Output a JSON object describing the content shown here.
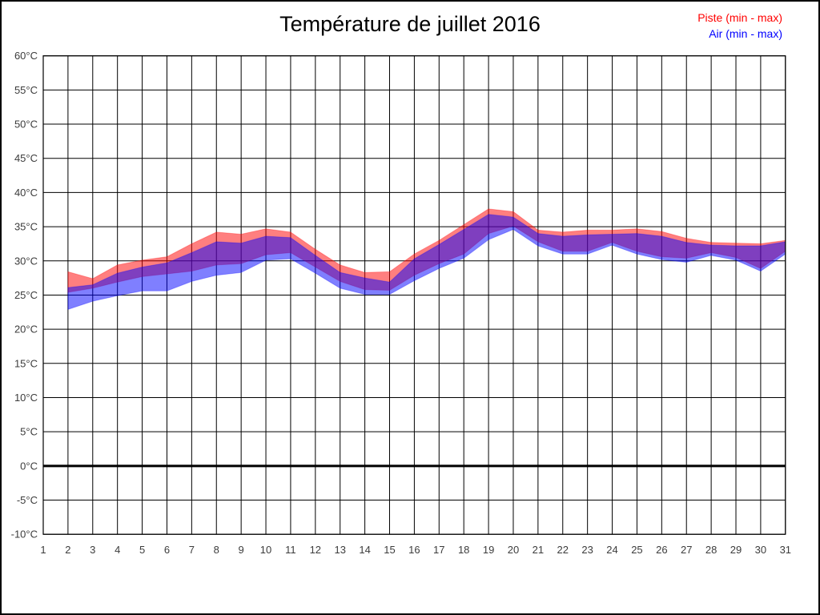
{
  "title": "Température de juillet 2016",
  "legend": {
    "items": [
      {
        "label": "Piste (min - max)",
        "color": "#ff0000"
      },
      {
        "label": "Air (min - max)",
        "color": "#0000ff"
      }
    ],
    "position": "top-right"
  },
  "chart_data": {
    "type": "area",
    "subtype": "min-max-range-bands",
    "title": "Température de juillet 2016",
    "xlabel": "",
    "ylabel": "",
    "unit": "°C",
    "xlim": [
      1,
      31
    ],
    "ylim": [
      -10,
      60
    ],
    "grid": true,
    "zero_line_value": 0,
    "x_ticks": [
      1,
      2,
      3,
      4,
      5,
      6,
      7,
      8,
      9,
      10,
      11,
      12,
      13,
      14,
      15,
      16,
      17,
      18,
      19,
      20,
      21,
      22,
      23,
      24,
      25,
      26,
      27,
      28,
      29,
      30,
      31
    ],
    "x_tick_labels": [
      "1",
      "2",
      "3",
      "4",
      "5",
      "6",
      "7",
      "8",
      "9",
      "10",
      "11",
      "12",
      "13",
      "14",
      "15",
      "16",
      "17",
      "18",
      "19",
      "20",
      "21",
      "22",
      "23",
      "24",
      "25",
      "26",
      "27",
      "28",
      "29",
      "30",
      "31"
    ],
    "y_tick_values": [
      60,
      55,
      50,
      45,
      40,
      35,
      30,
      25,
      20,
      15,
      10,
      5,
      0,
      -5,
      -10
    ],
    "y_tick_labels": [
      "60°C",
      "55°C",
      "50°C",
      "45°C",
      "40°C",
      "35°C",
      "30°C",
      "25°C",
      "20°C",
      "15°C",
      "10°C",
      "5°C",
      "0°C",
      "-5°C",
      "-10°C"
    ],
    "days": [
      2,
      3,
      4,
      5,
      6,
      7,
      8,
      9,
      10,
      11,
      12,
      13,
      14,
      15,
      16,
      17,
      18,
      19,
      20,
      21,
      22,
      23,
      24,
      25,
      26,
      27,
      28,
      29,
      30,
      31
    ],
    "series": [
      {
        "name": "Piste (min - max)",
        "color": "#ff0000",
        "fill_opacity": 0.5,
        "max": [
          28.4,
          27.4,
          29.4,
          30.1,
          30.6,
          32.5,
          34.2,
          33.9,
          34.7,
          34.2,
          31.7,
          29.4,
          28.3,
          28.4,
          31.0,
          33.0,
          35.3,
          37.6,
          37.2,
          34.5,
          34.2,
          34.5,
          34.5,
          34.7,
          34.3,
          33.3,
          32.7,
          32.6,
          32.5,
          33.0
        ],
        "min": [
          25.4,
          26.0,
          26.9,
          27.7,
          28.1,
          28.5,
          29.4,
          29.6,
          30.9,
          31.2,
          29.1,
          27.0,
          25.8,
          25.7,
          27.9,
          29.6,
          31.0,
          34.0,
          35.1,
          32.8,
          31.4,
          31.4,
          32.7,
          31.4,
          30.6,
          30.4,
          31.2,
          30.5,
          28.9,
          31.4
        ]
      },
      {
        "name": "Air (min - max)",
        "color": "#0000ff",
        "fill_opacity": 0.5,
        "max": [
          26.1,
          26.5,
          28.2,
          29.1,
          29.7,
          31.2,
          32.8,
          32.6,
          33.6,
          33.4,
          30.8,
          28.3,
          27.5,
          26.9,
          30.3,
          32.4,
          34.6,
          36.8,
          36.4,
          34.0,
          33.6,
          33.8,
          33.9,
          34.0,
          33.6,
          32.7,
          32.3,
          32.2,
          32.2,
          32.8
        ],
        "min": [
          22.9,
          24.1,
          24.9,
          25.6,
          25.6,
          27.0,
          27.9,
          28.3,
          30.1,
          30.3,
          28.2,
          26.0,
          25.1,
          25.1,
          27.1,
          28.9,
          30.4,
          33.1,
          34.6,
          32.2,
          31.0,
          31.0,
          32.3,
          31.0,
          30.2,
          29.8,
          30.8,
          30.1,
          28.5,
          31.0
        ]
      }
    ],
    "legend_position": "top-right"
  },
  "style": {
    "grid_color": "#000000",
    "tick_label_color": "#3c3c3c",
    "zero_line_color": "#000000",
    "background": "#ffffff"
  }
}
